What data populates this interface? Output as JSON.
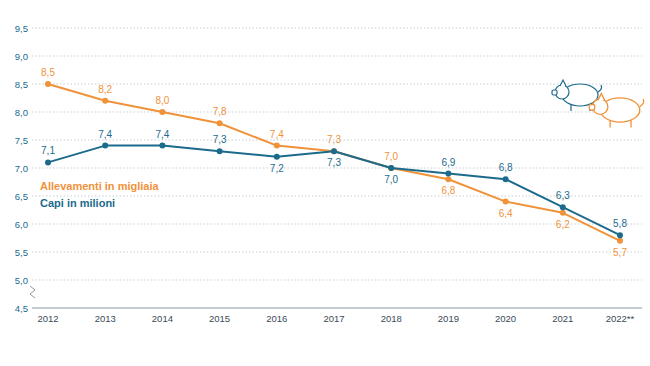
{
  "chart_data": {
    "type": "line",
    "categories": [
      "2012",
      "2013",
      "2014",
      "2015",
      "2016",
      "2017",
      "2018",
      "2019",
      "2020",
      "2021",
      "2022**"
    ],
    "series": [
      {
        "name": "Allevamenti in migliaia",
        "color": "#f0923a",
        "values": [
          8.5,
          8.2,
          8.0,
          7.8,
          7.4,
          7.3,
          7.0,
          6.8,
          6.4,
          6.2,
          5.7
        ],
        "value_labels": [
          "8,5",
          "8,2",
          "8,0",
          "7,8",
          "7,4",
          "7,3",
          "7,0",
          "6,8",
          "6,4",
          "6,2",
          "5,7"
        ]
      },
      {
        "name": "Capi in milioni",
        "color": "#1c6b8c",
        "values": [
          7.1,
          7.4,
          7.4,
          7.3,
          7.2,
          7.3,
          7.0,
          6.9,
          6.8,
          6.3,
          5.8
        ],
        "value_labels": [
          "7,1",
          "7,4",
          "7,4",
          "7,3",
          "7,2",
          "7,3",
          "7,0",
          "6,9",
          "6,8",
          "6,3",
          "5,8"
        ]
      }
    ],
    "ylim": [
      4.5,
      9.5
    ],
    "yticks": [
      {
        "value": 4.5,
        "label": "4,5"
      },
      {
        "value": 5.0,
        "label": "5,0"
      },
      {
        "value": 5.5,
        "label": "5,5"
      },
      {
        "value": 6.0,
        "label": "6,0"
      },
      {
        "value": 6.5,
        "label": "6,5"
      },
      {
        "value": 7.0,
        "label": "7,0"
      },
      {
        "value": 7.5,
        "label": "7,5"
      },
      {
        "value": 8.0,
        "label": "8,0"
      },
      {
        "value": 8.5,
        "label": "8,5"
      },
      {
        "value": 9.0,
        "label": "9,0"
      },
      {
        "value": 9.5,
        "label": "9,5"
      }
    ],
    "grid": true,
    "data_labels": true,
    "marker": "circle",
    "legend": "left"
  }
}
